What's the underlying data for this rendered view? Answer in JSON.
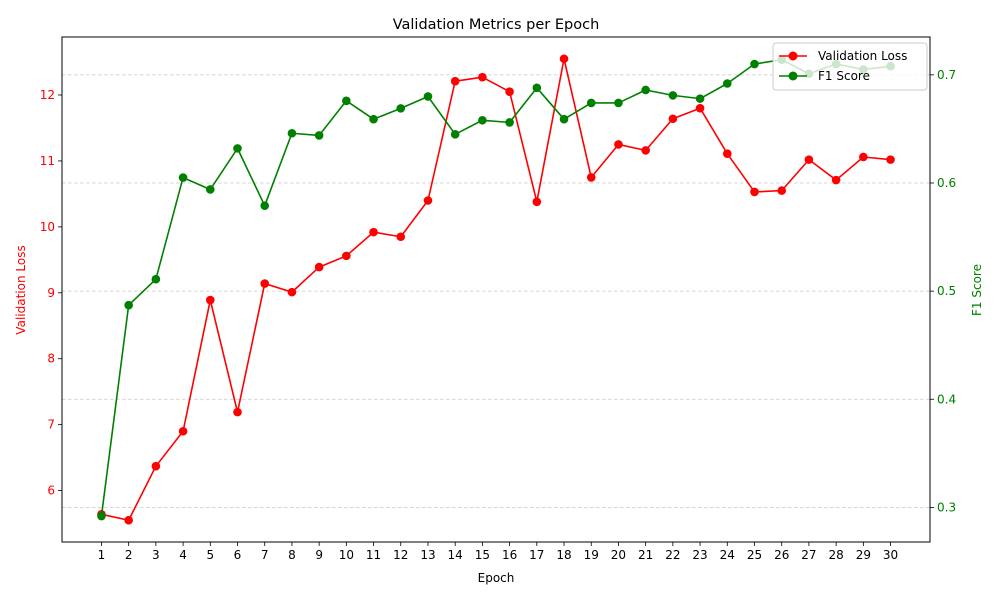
{
  "chart_data": {
    "type": "line",
    "title": "Validation Metrics per Epoch",
    "xlabel": "Epoch",
    "ylabel_left": "Validation Loss",
    "ylabel_right": "F1 Score",
    "x": [
      1,
      2,
      3,
      4,
      5,
      6,
      7,
      8,
      9,
      10,
      11,
      12,
      13,
      14,
      15,
      16,
      17,
      18,
      19,
      20,
      21,
      22,
      23,
      24,
      25,
      26,
      27,
      28,
      29,
      30
    ],
    "ylim_left": [
      5.22,
      12.88
    ],
    "ylim_right": [
      0.268,
      0.735
    ],
    "yticks_left": [
      6,
      7,
      8,
      9,
      10,
      11,
      12
    ],
    "yticks_right": [
      0.3,
      0.4,
      0.5,
      0.6,
      0.7
    ],
    "grid": "horizontal dashed, right axis",
    "legend_position": "top-right",
    "series": [
      {
        "name": "Validation Loss",
        "axis": "left",
        "color": "#ff0000",
        "values": [
          5.64,
          5.55,
          6.37,
          6.9,
          8.89,
          7.19,
          9.14,
          9.01,
          9.39,
          9.56,
          9.92,
          9.85,
          10.4,
          12.21,
          12.27,
          12.05,
          10.38,
          12.55,
          10.75,
          11.25,
          11.16,
          11.64,
          11.8,
          11.11,
          10.53,
          10.55,
          11.02,
          10.71,
          11.06,
          11.02
        ]
      },
      {
        "name": "F1 Score",
        "axis": "right",
        "color": "#008000",
        "values": [
          0.292,
          0.487,
          0.511,
          0.605,
          0.594,
          0.632,
          0.579,
          0.646,
          0.644,
          0.676,
          0.659,
          0.669,
          0.68,
          0.645,
          0.658,
          0.656,
          0.688,
          0.659,
          0.674,
          0.674,
          0.686,
          0.681,
          0.678,
          0.692,
          0.71,
          0.714,
          0.701,
          0.71,
          0.705,
          0.708
        ]
      }
    ]
  }
}
